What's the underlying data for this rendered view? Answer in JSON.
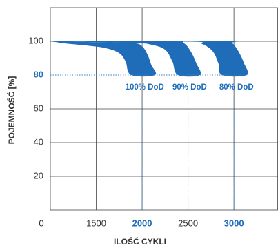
{
  "chart_data": {
    "type": "band",
    "xlabel": "ILOŚĆ CYKLI",
    "ylabel": "POJEMNOŚĆ [%]",
    "origin_label": "0",
    "xlim": [
      1000,
      3480
    ],
    "ylim": [
      0,
      120
    ],
    "xticks": [
      1500,
      2000,
      2500,
      3000
    ],
    "yticks": [
      20,
      40,
      60,
      80,
      100
    ],
    "grid": true,
    "grid_color": "#444444",
    "reference_lines": {
      "x": [
        2000,
        2500,
        3000
      ],
      "y": 80,
      "color": "#3a7fc4"
    },
    "emphasis": {
      "x": [
        2000,
        3000
      ],
      "y": [
        80
      ],
      "color": "#1f6db8"
    },
    "series": [
      {
        "name": "100% DoD",
        "color": "#1f6db8",
        "lower": {
          "x": [
            1000,
            1200,
            1400,
            1600,
            1750,
            1820,
            1880
          ],
          "values": [
            100,
            98.5,
            97.5,
            96,
            93,
            88,
            80
          ]
        },
        "upper": {
          "x": [
            1000,
            1500,
            1900,
            2000,
            2060,
            2100,
            2140
          ],
          "values": [
            100,
            99.5,
            99,
            97,
            92,
            86,
            80
          ]
        }
      },
      {
        "name": "90% DoD",
        "color": "#1f6db8",
        "lower": {
          "x": [
            1000,
            1900,
            2100,
            2250,
            2330,
            2390
          ],
          "values": [
            100,
            99,
            98,
            95,
            88,
            80
          ]
        },
        "upper": {
          "x": [
            1000,
            2300,
            2450,
            2530,
            2590,
            2630
          ],
          "values": [
            100,
            100,
            99,
            94,
            87,
            80
          ]
        }
      },
      {
        "name": "80% DoD",
        "color": "#1f6db8",
        "lower": {
          "x": [
            1000,
            2500,
            2650,
            2770,
            2830,
            2870
          ],
          "values": [
            100,
            99.8,
            98.5,
            94,
            87,
            80
          ]
        },
        "upper": {
          "x": [
            1000,
            2900,
            2980,
            3050,
            3110,
            3140
          ],
          "values": [
            100.3,
            100.3,
            99,
            94,
            87,
            80
          ]
        }
      }
    ]
  }
}
